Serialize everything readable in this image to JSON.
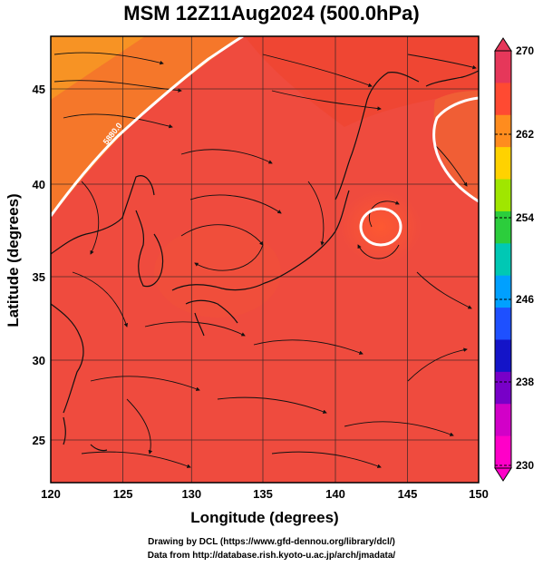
{
  "title": "MSM 12Z11Aug2024 (500.0hPa)",
  "axes": {
    "xlabel": "Longitude (degrees)",
    "ylabel": "Latitude  (degrees)",
    "xticks": [
      "120",
      "125",
      "130",
      "135",
      "140",
      "145",
      "150"
    ],
    "yticks": [
      "25",
      "30",
      "35",
      "40",
      "45"
    ]
  },
  "colorbar": {
    "labels": [
      "270",
      "262",
      "254",
      "246",
      "238",
      "230"
    ],
    "colors": [
      "#e6375a",
      "#ff4a32",
      "#ff8c1e",
      "#ffd200",
      "#a0e600",
      "#2ccd3c",
      "#00c8b4",
      "#00a0ff",
      "#1e50ff",
      "#1414c8",
      "#7800c8",
      "#d200c8",
      "#ff00c8"
    ]
  },
  "contour_label": "5880.0",
  "credits": {
    "line1": "Drawing by DCL (https://www.gfd-dennou.org/library/dcl/)",
    "line2": "Data from http://database.rish.kyoto-u.ac.jp/arch/jmadata/"
  },
  "chart_data": {
    "type": "map",
    "title": "MSM 12Z11Aug2024 (500.0hPa)",
    "xlabel": "Longitude (degrees)",
    "ylabel": "Latitude  (degrees)",
    "xlim": [
      120,
      150
    ],
    "ylim": [
      22.4,
      47.6
    ],
    "colorbar_range": [
      230,
      270
    ],
    "colorbar_ticks": [
      270,
      262,
      254,
      246,
      238,
      230
    ],
    "contour_value": 5880.0
  }
}
